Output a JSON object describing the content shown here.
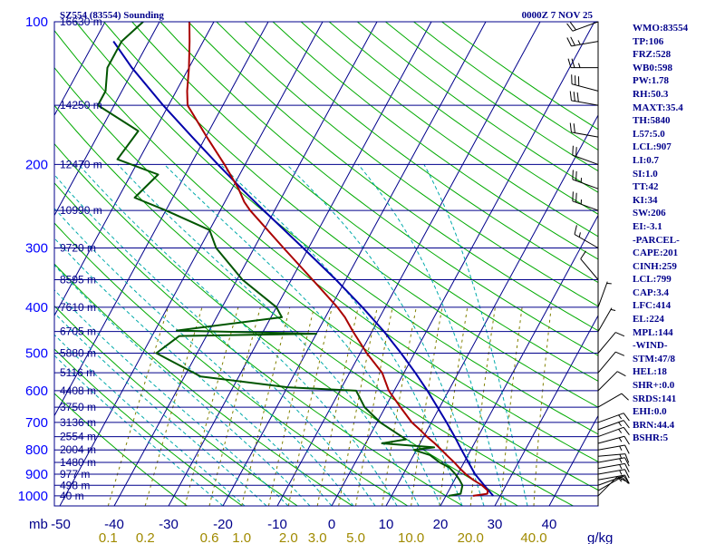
{
  "header": {
    "station": "SZ554 (83554) Sounding",
    "time": "0000Z  7 NOV 25"
  },
  "chart_data": {
    "type": "skew-t",
    "y_unit_label": "mb",
    "mix_unit_label": "g/kg",
    "pressure_levels": [
      100,
      200,
      300,
      400,
      500,
      600,
      700,
      800,
      900,
      1000
    ],
    "height_lines": [
      {
        "p": 100,
        "label": "16630 m"
      },
      {
        "p": 150,
        "label": "14250 m"
      },
      {
        "p": 200,
        "label": "12470 m"
      },
      {
        "p": 250,
        "label": "10990 m"
      },
      {
        "p": 300,
        "label": "9720 m"
      },
      {
        "p": 350,
        "label": "8595 m"
      },
      {
        "p": 400,
        "label": "7610 m"
      },
      {
        "p": 450,
        "label": "6705 m"
      },
      {
        "p": 500,
        "label": "5880 m"
      },
      {
        "p": 550,
        "label": "5116 m"
      },
      {
        "p": 600,
        "label": "4408 m"
      },
      {
        "p": 650,
        "label": "3750 m"
      },
      {
        "p": 700,
        "label": "3136 m"
      },
      {
        "p": 750,
        "label": "2554 m"
      },
      {
        "p": 800,
        "label": "2004 m"
      },
      {
        "p": 850,
        "label": "1480 m"
      },
      {
        "p": 900,
        "label": "977 m"
      },
      {
        "p": 950,
        "label": "498 m"
      },
      {
        "p": 1000,
        "label": "40 m"
      }
    ],
    "temp_ticks": [
      -50,
      -40,
      -30,
      -20,
      -10,
      0,
      10,
      20,
      30,
      40,
      50
    ],
    "temp_tick_labels": [
      "",
      "-40",
      "-30",
      "-20",
      "-10",
      "0",
      "10",
      "20",
      "30",
      "40",
      ""
    ],
    "mixing_ratio_labels": [
      "0.1",
      "0.2",
      "0.6",
      "1.0",
      "2.0",
      "3.0",
      "5.0",
      "10.0",
      "20.0",
      "40.0"
    ],
    "mixing_ratio_positions": [
      0.1,
      0.2,
      0.6,
      1.0,
      2.0,
      3.0,
      5.0,
      10.0,
      20.0,
      40.0
    ],
    "temperature": [
      {
        "p": 1000,
        "t": 25.0
      },
      {
        "p": 990,
        "t": 27.4
      },
      {
        "p": 975,
        "t": 27.2
      },
      {
        "p": 950,
        "t": 25.6
      },
      {
        "p": 925,
        "t": 23.4
      },
      {
        "p": 900,
        "t": 21.5
      },
      {
        "p": 875,
        "t": 19.8
      },
      {
        "p": 850,
        "t": 18.2
      },
      {
        "p": 825,
        "t": 16.4
      },
      {
        "p": 800,
        "t": 14.6
      },
      {
        "p": 775,
        "t": 12.7
      },
      {
        "p": 750,
        "t": 10.6
      },
      {
        "p": 725,
        "t": 8.6
      },
      {
        "p": 700,
        "t": 6.4
      },
      {
        "p": 650,
        "t": 2.8
      },
      {
        "p": 600,
        "t": -1.0
      },
      {
        "p": 550,
        "t": -4.0
      },
      {
        "p": 500,
        "t": -8.8
      },
      {
        "p": 450,
        "t": -13.5
      },
      {
        "p": 420,
        "t": -16.4
      },
      {
        "p": 400,
        "t": -18.8
      },
      {
        "p": 350,
        "t": -26.1
      },
      {
        "p": 300,
        "t": -34.6
      },
      {
        "p": 250,
        "t": -44.5
      },
      {
        "p": 240,
        "t": -46.4
      },
      {
        "p": 225,
        "t": -48.8
      },
      {
        "p": 200,
        "t": -53.8
      },
      {
        "p": 175,
        "t": -59.8
      },
      {
        "p": 150,
        "t": -66.5
      },
      {
        "p": 140,
        "t": -68.0
      },
      {
        "p": 125,
        "t": -70.0
      },
      {
        "p": 110,
        "t": -72.5
      },
      {
        "p": 100,
        "t": -74.5
      }
    ],
    "dewpoint": [
      {
        "p": 1000,
        "t": 20.5
      },
      {
        "p": 990,
        "t": 22.5
      },
      {
        "p": 950,
        "t": 22.0
      },
      {
        "p": 925,
        "t": 20.9
      },
      {
        "p": 900,
        "t": 19.6
      },
      {
        "p": 870,
        "t": 17.7
      },
      {
        "p": 850,
        "t": 15.5
      },
      {
        "p": 820,
        "t": 13.0
      },
      {
        "p": 800,
        "t": 9.5
      },
      {
        "p": 790,
        "t": 13.0
      },
      {
        "p": 775,
        "t": 3.0
      },
      {
        "p": 760,
        "t": 7.0
      },
      {
        "p": 700,
        "t": 0.6
      },
      {
        "p": 650,
        "t": -3.8
      },
      {
        "p": 600,
        "t": -7.0
      },
      {
        "p": 590,
        "t": -20.0
      },
      {
        "p": 560,
        "t": -37.0
      },
      {
        "p": 500,
        "t": -47.5
      },
      {
        "p": 460,
        "t": -45.0
      },
      {
        "p": 455,
        "t": -20.0
      },
      {
        "p": 448,
        "t": -46.0
      },
      {
        "p": 420,
        "t": -28.0
      },
      {
        "p": 400,
        "t": -30.0
      },
      {
        "p": 350,
        "t": -39.0
      },
      {
        "p": 300,
        "t": -47.0
      },
      {
        "p": 275,
        "t": -50.0
      },
      {
        "p": 250,
        "t": -60.0
      },
      {
        "p": 235,
        "t": -67.0
      },
      {
        "p": 210,
        "t": -65.0
      },
      {
        "p": 195,
        "t": -74.0
      },
      {
        "p": 170,
        "t": -73.0
      },
      {
        "p": 150,
        "t": -83.0
      },
      {
        "p": 140,
        "t": -83.0
      },
      {
        "p": 125,
        "t": -85.0
      },
      {
        "p": 110,
        "t": -85.0
      },
      {
        "p": 100,
        "t": -83.0
      }
    ],
    "parcel": [
      {
        "p": 1000,
        "t": 28.7
      },
      {
        "p": 950,
        "t": 26.0
      },
      {
        "p": 900,
        "t": 23.2
      },
      {
        "p": 850,
        "t": 20.8
      },
      {
        "p": 800,
        "t": 18.3
      },
      {
        "p": 750,
        "t": 15.7
      },
      {
        "p": 700,
        "t": 12.8
      },
      {
        "p": 650,
        "t": 9.6
      },
      {
        "p": 600,
        "t": 6.1
      },
      {
        "p": 550,
        "t": 2.1
      },
      {
        "p": 500,
        "t": -2.5
      },
      {
        "p": 450,
        "t": -7.8
      },
      {
        "p": 400,
        "t": -14.2
      },
      {
        "p": 350,
        "t": -21.8
      },
      {
        "p": 300,
        "t": -31.0
      },
      {
        "p": 250,
        "t": -42.0
      },
      {
        "p": 224,
        "t": -48.5
      },
      {
        "p": 200,
        "t": -55.0
      },
      {
        "p": 175,
        "t": -62.5
      },
      {
        "p": 150,
        "t": -71.0
      },
      {
        "p": 125,
        "t": -80.5
      },
      {
        "p": 110,
        "t": -86.5
      }
    ],
    "wind": [
      {
        "p": 1000,
        "dir": 45,
        "spd": 10
      },
      {
        "p": 975,
        "dir": 60,
        "spd": 10
      },
      {
        "p": 950,
        "dir": 70,
        "spd": 15
      },
      {
        "p": 925,
        "dir": 80,
        "spd": 15
      },
      {
        "p": 900,
        "dir": 80,
        "spd": 15
      },
      {
        "p": 875,
        "dir": 80,
        "spd": 15
      },
      {
        "p": 850,
        "dir": 80,
        "spd": 15
      },
      {
        "p": 825,
        "dir": 85,
        "spd": 15
      },
      {
        "p": 800,
        "dir": 80,
        "spd": 15
      },
      {
        "p": 775,
        "dir": 75,
        "spd": 15
      },
      {
        "p": 750,
        "dir": 70,
        "spd": 15
      },
      {
        "p": 725,
        "dir": 70,
        "spd": 15
      },
      {
        "p": 700,
        "dir": 70,
        "spd": 15
      },
      {
        "p": 650,
        "dir": 60,
        "spd": 10
      },
      {
        "p": 600,
        "dir": 45,
        "spd": 10
      },
      {
        "p": 550,
        "dir": 40,
        "spd": 10
      },
      {
        "p": 500,
        "dir": 40,
        "spd": 10
      },
      {
        "p": 450,
        "dir": 30,
        "spd": 5
      },
      {
        "p": 400,
        "dir": 20,
        "spd": 5
      },
      {
        "p": 350,
        "dir": 320,
        "spd": 10
      },
      {
        "p": 300,
        "dir": 300,
        "spd": 15
      },
      {
        "p": 250,
        "dir": 290,
        "spd": 25
      },
      {
        "p": 225,
        "dir": 290,
        "spd": 25
      },
      {
        "p": 200,
        "dir": 290,
        "spd": 20
      },
      {
        "p": 175,
        "dir": 280,
        "spd": 20
      },
      {
        "p": 150,
        "dir": 280,
        "spd": 30
      },
      {
        "p": 140,
        "dir": 285,
        "spd": 30
      },
      {
        "p": 125,
        "dir": 270,
        "spd": 25
      },
      {
        "p": 110,
        "dir": 260,
        "spd": 25
      },
      {
        "p": 100,
        "dir": 250,
        "spd": 20
      }
    ],
    "colors": {
      "frame": "#00008b",
      "isobar": "#00008b",
      "isotherm": "#00008b",
      "dry_adiabat": "#00aa00",
      "moist_adiabat": "#00aaaa",
      "mixing_ratio": "#808000",
      "temperature": "#aa0000",
      "dewpoint": "#005500",
      "parcel": "#0000aa",
      "wind_barb": "#000000"
    }
  },
  "indices": [
    "WMO:83554",
    "TP:106",
    "FRZ:528",
    "WB0:598",
    "PW:1.78",
    "RH:50.3",
    "MAXT:35.4",
    "TH:5840",
    "L57:5.0",
    "LCL:907",
    "LI:0.7",
    "SI:1.0",
    "TT:42",
    "KI:34",
    "SW:206",
    "EI:-3.1",
    "-PARCEL-",
    "CAPE:201",
    "CINH:259",
    "LCL:799",
    "CAP:3.4",
    "LFC:414",
    "EL:224",
    "MPL:144",
    "-WIND-",
    "STM:47/8",
    "HEL:18",
    "SHR+:0.0",
    "SRDS:141",
    "EHI:0.0",
    "BRN:44.4",
    "BSHR:5"
  ]
}
